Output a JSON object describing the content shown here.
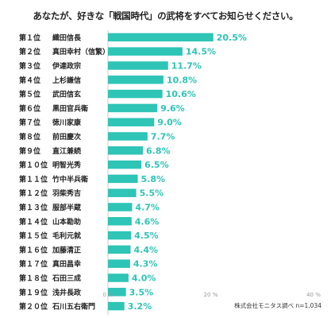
{
  "title": "あなたが、好きな「戦国時代」の武将をすべてお知らせください。",
  "source": "株式会社モニタス調べ n=1,034",
  "colors": {
    "bar": "#2ec4b6",
    "value_text": "#2ec4b6",
    "axis": "#cccccc",
    "label": "#222222"
  },
  "chart_data": {
    "type": "bar",
    "orientation": "horizontal",
    "title": "あなたが、好きな「戦国時代」の武将をすべてお知らせください。",
    "xlim": [
      0,
      40
    ],
    "x_ticks": [
      "0 %",
      "20 %",
      "40 %"
    ],
    "rows": [
      {
        "rank": "第１位",
        "name": "織田信長",
        "value": 20.5,
        "label": "20.5%"
      },
      {
        "rank": "第２位",
        "name": "真田幸村（信繁）",
        "value": 14.5,
        "label": "14.5%"
      },
      {
        "rank": "第３位",
        "name": "伊達政宗",
        "value": 11.7,
        "label": "11.7%"
      },
      {
        "rank": "第４位",
        "name": "上杉謙信",
        "value": 10.8,
        "label": "10.8%"
      },
      {
        "rank": "第５位",
        "name": "武田信玄",
        "value": 10.6,
        "label": "10.6%"
      },
      {
        "rank": "第６位",
        "name": "黒田官兵衛",
        "value": 9.6,
        "label": "9.6%"
      },
      {
        "rank": "第７位",
        "name": "徳川家康",
        "value": 9.0,
        "label": "9.0%"
      },
      {
        "rank": "第８位",
        "name": "前田慶次",
        "value": 7.7,
        "label": "7.7%"
      },
      {
        "rank": "第９位",
        "name": "直江兼続",
        "value": 6.8,
        "label": "6.8%"
      },
      {
        "rank": "第１０位",
        "name": "明智光秀",
        "value": 6.5,
        "label": "6.5%"
      },
      {
        "rank": "第１１位",
        "name": "竹中半兵衛",
        "value": 5.8,
        "label": "5.8%"
      },
      {
        "rank": "第１２位",
        "name": "羽柴秀吉",
        "value": 5.5,
        "label": "5.5%"
      },
      {
        "rank": "第１３位",
        "name": "服部半蔵",
        "value": 4.7,
        "label": "4.7%"
      },
      {
        "rank": "第１４位",
        "name": "山本勘助",
        "value": 4.6,
        "label": "4.6%"
      },
      {
        "rank": "第１５位",
        "name": "毛利元就",
        "value": 4.5,
        "label": "4.5%"
      },
      {
        "rank": "第１６位",
        "name": "加藤清正",
        "value": 4.4,
        "label": "4.4%"
      },
      {
        "rank": "第１７位",
        "name": "真田昌幸",
        "value": 4.3,
        "label": "4.3%"
      },
      {
        "rank": "第１８位",
        "name": "石田三成",
        "value": 4.0,
        "label": "4.0%"
      },
      {
        "rank": "第１９位",
        "name": "浅井長政",
        "value": 3.5,
        "label": "3.5%"
      },
      {
        "rank": "第２０位",
        "name": "石川五右衛門",
        "value": 3.2,
        "label": "3.2%"
      }
    ]
  }
}
